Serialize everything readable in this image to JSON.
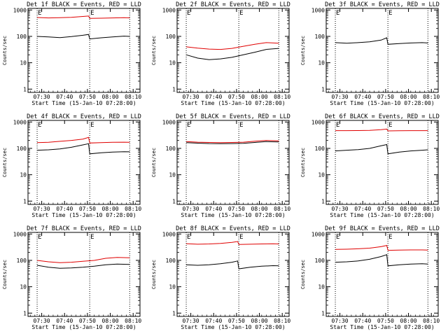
{
  "layout": {
    "rows": 3,
    "cols": 3
  },
  "colors": {
    "events": "#000000",
    "lld": "#e00000",
    "axis": "#000000"
  },
  "shared": {
    "ylabel": "Counts/sec",
    "xlabel": "Start Time (15-Jan-10 07:28:00)",
    "yticks": [
      1,
      10,
      100,
      1000
    ],
    "ytick_labels": [
      "1",
      "10",
      "100",
      "1000"
    ],
    "xticks": [
      "07:30",
      "07:40",
      "07:50",
      "08:00",
      "08:10"
    ],
    "xtick_minutes": [
      2,
      12,
      22,
      32,
      42
    ],
    "xlim_minutes": [
      -4,
      45
    ],
    "ylim": [
      0.75,
      1150
    ],
    "marker_lines_minutes": [
      0,
      23,
      40.5
    ],
    "marker_labels": [
      "E",
      "E"
    ],
    "marker_label_minutes": [
      0,
      23
    ],
    "scale": "log"
  },
  "chart_data": [
    {
      "type": "line",
      "title": "Det 1f BLACK = Events, RED = LLD",
      "series": [
        {
          "name": "Events",
          "x": [
            0,
            5,
            10,
            15,
            20,
            22.5,
            23,
            28,
            33,
            38,
            40.5
          ],
          "y": [
            100,
            95,
            90,
            98,
            110,
            118,
            80,
            88,
            95,
            102,
            100
          ]
        },
        {
          "name": "LLD",
          "x": [
            0,
            5,
            10,
            15,
            20,
            22.5,
            23,
            28,
            33,
            38,
            40.5
          ],
          "y": [
            520,
            500,
            510,
            530,
            570,
            590,
            480,
            490,
            500,
            510,
            505
          ]
        }
      ]
    },
    {
      "type": "line",
      "title": "Det 2f BLACK = Events, RED = LLD",
      "series": [
        {
          "name": "Events",
          "x": [
            0,
            5,
            10,
            15,
            20,
            25,
            30,
            35,
            40.5
          ],
          "y": [
            20,
            15,
            13,
            14,
            16,
            20,
            25,
            32,
            35
          ]
        },
        {
          "name": "LLD",
          "x": [
            0,
            5,
            10,
            15,
            20,
            25,
            30,
            35,
            40.5
          ],
          "y": [
            40,
            36,
            33,
            32,
            35,
            42,
            50,
            58,
            55
          ]
        }
      ]
    },
    {
      "type": "line",
      "title": "Det 3f BLACK = Events, RED = LLD",
      "series": [
        {
          "name": "Events",
          "x": [
            0,
            5,
            10,
            15,
            20,
            22.5,
            23,
            28,
            33,
            38,
            40.5
          ],
          "y": [
            58,
            55,
            58,
            62,
            72,
            88,
            50,
            53,
            56,
            58,
            56
          ]
        }
      ]
    },
    {
      "type": "line",
      "title": "Det 4f BLACK = Events, RED = LLD",
      "series": [
        {
          "name": "Events",
          "x": [
            0,
            5,
            10,
            15,
            20,
            22.5,
            23,
            28,
            33,
            38,
            40.5
          ],
          "y": [
            85,
            88,
            95,
            110,
            135,
            150,
            62,
            68,
            72,
            75,
            74
          ]
        },
        {
          "name": "LLD",
          "x": [
            0,
            5,
            10,
            15,
            20,
            22.5,
            23,
            28,
            33,
            38,
            40.5
          ],
          "y": [
            165,
            170,
            185,
            200,
            225,
            260,
            160,
            165,
            170,
            172,
            170
          ]
        }
      ]
    },
    {
      "type": "line",
      "title": "Det 5f BLACK = Events, RED = LLD",
      "series": [
        {
          "name": "Events",
          "x": [
            0,
            5,
            10,
            15,
            20,
            25,
            30,
            35,
            40.5
          ],
          "y": [
            165,
            158,
            152,
            150,
            152,
            155,
            168,
            180,
            175
          ]
        },
        {
          "name": "LLD",
          "x": [
            0,
            5,
            10,
            15,
            20,
            25,
            30,
            35,
            40.5
          ],
          "y": [
            180,
            172,
            168,
            166,
            168,
            172,
            186,
            200,
            192
          ]
        }
      ]
    },
    {
      "type": "line",
      "title": "Det 6f BLACK = Events, RED = LLD",
      "series": [
        {
          "name": "Events",
          "x": [
            0,
            5,
            10,
            15,
            20,
            22.5,
            23,
            28,
            33,
            38,
            40.5
          ],
          "y": [
            80,
            85,
            90,
            100,
            125,
            140,
            62,
            72,
            80,
            85,
            88
          ]
        },
        {
          "name": "LLD",
          "x": [
            0,
            5,
            10,
            15,
            20,
            22.5,
            23,
            28,
            33,
            38,
            40.5
          ],
          "y": [
            470,
            470,
            475,
            480,
            510,
            540,
            460,
            465,
            470,
            470,
            470
          ]
        }
      ]
    },
    {
      "type": "line",
      "title": "Det 7f BLACK = Events, RED = LLD",
      "series": [
        {
          "name": "Events",
          "x": [
            0,
            5,
            10,
            15,
            20,
            25,
            30,
            35,
            40.5
          ],
          "y": [
            65,
            55,
            50,
            52,
            55,
            60,
            68,
            72,
            70
          ]
        },
        {
          "name": "LLD",
          "x": [
            0,
            5,
            10,
            15,
            20,
            25,
            30,
            35,
            40.5
          ],
          "y": [
            100,
            88,
            82,
            85,
            92,
            100,
            120,
            130,
            125
          ]
        }
      ]
    },
    {
      "type": "line",
      "title": "Det 8f BLACK = Events, RED = LLD",
      "series": [
        {
          "name": "Events",
          "x": [
            0,
            5,
            10,
            15,
            20,
            22.5,
            23,
            28,
            33,
            38,
            40.5
          ],
          "y": [
            68,
            65,
            68,
            75,
            85,
            95,
            48,
            55,
            60,
            63,
            62
          ]
        },
        {
          "name": "LLD",
          "x": [
            0,
            5,
            10,
            15,
            20,
            22.5,
            23,
            28,
            33,
            38,
            40.5
          ],
          "y": [
            430,
            410,
            420,
            440,
            480,
            520,
            400,
            410,
            420,
            425,
            420
          ]
        }
      ]
    },
    {
      "type": "line",
      "title": "Det 9f BLACK = Events, RED = LLD",
      "series": [
        {
          "name": "Events",
          "x": [
            0,
            5,
            10,
            15,
            20,
            22.5,
            23,
            28,
            33,
            38,
            40.5
          ],
          "y": [
            85,
            88,
            95,
            110,
            140,
            165,
            62,
            68,
            72,
            75,
            72
          ]
        },
        {
          "name": "LLD",
          "x": [
            0,
            5,
            10,
            15,
            20,
            22.5,
            23,
            28,
            33,
            38,
            40.5
          ],
          "y": [
            260,
            265,
            275,
            290,
            330,
            370,
            240,
            245,
            250,
            250,
            245
          ]
        }
      ]
    }
  ]
}
